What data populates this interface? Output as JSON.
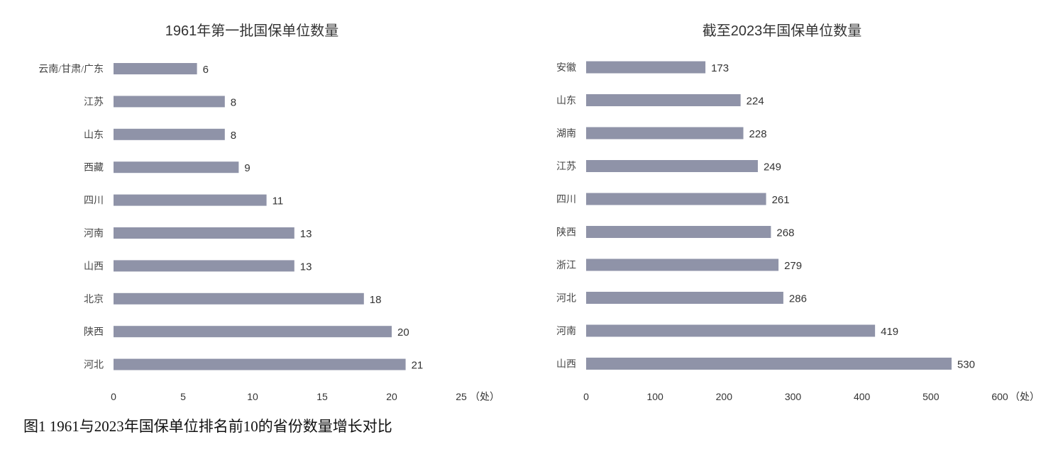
{
  "chart_data": [
    {
      "type": "bar",
      "orientation": "horizontal",
      "title": "1961年第一批国保单位数量",
      "categories": [
        "云南/甘肃/广东",
        "江苏",
        "山东",
        "西藏",
        "四川",
        "河南",
        "山西",
        "北京",
        "陕西",
        "河北"
      ],
      "values": [
        6,
        8,
        8,
        9,
        11,
        13,
        13,
        18,
        20,
        21
      ],
      "xlim": [
        0,
        25
      ],
      "xticks": [
        0,
        5,
        10,
        15,
        20,
        25
      ],
      "xunit": "（处）",
      "grid": false,
      "bar_color": "#8f93a8"
    },
    {
      "type": "bar",
      "orientation": "horizontal",
      "title": "截至2023年国保单位数量",
      "categories": [
        "安徽",
        "山东",
        "湖南",
        "江苏",
        "四川",
        "陕西",
        "浙江",
        "河北",
        "河南",
        "山西"
      ],
      "values": [
        173,
        224,
        228,
        249,
        261,
        268,
        279,
        286,
        419,
        530
      ],
      "xlim": [
        0,
        600
      ],
      "xticks": [
        0,
        100,
        200,
        300,
        400,
        500,
        600
      ],
      "xunit": "（处）",
      "grid": false,
      "bar_color": "#8f93a8"
    }
  ],
  "caption": "图1  1961与2023年国保单位排名前10的省份数量增长对比"
}
